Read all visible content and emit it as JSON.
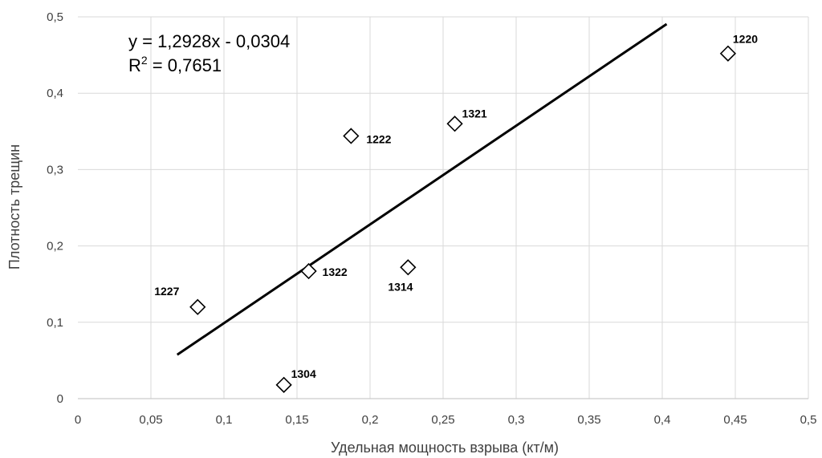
{
  "chart_data": {
    "type": "scatter",
    "xlabel": "Удельная мощность взрыва (кт/м)",
    "ylabel": "Плотность трещин",
    "xlim": [
      0,
      0.5
    ],
    "ylim": [
      0,
      0.5
    ],
    "x_ticks": [
      0,
      0.05,
      0.1,
      0.15,
      0.2,
      0.25,
      0.3,
      0.35,
      0.4,
      0.45,
      0.5
    ],
    "x_tick_labels": [
      "0",
      "0,05",
      "0,1",
      "0,15",
      "0,2",
      "0,25",
      "0,3",
      "0,35",
      "0,4",
      "0,45",
      "0,5"
    ],
    "y_ticks": [
      0,
      0.1,
      0.2,
      0.3,
      0.4,
      0.5
    ],
    "y_tick_labels": [
      "0",
      "0,1",
      "0,2",
      "0,3",
      "0,4",
      "0,5"
    ],
    "grid": true,
    "marker": "diamond",
    "points": [
      {
        "label": "1220",
        "x": 0.445,
        "y": 0.452
      },
      {
        "label": "1321",
        "x": 0.258,
        "y": 0.36
      },
      {
        "label": "1222",
        "x": 0.187,
        "y": 0.344
      },
      {
        "label": "1322",
        "x": 0.158,
        "y": 0.167
      },
      {
        "label": "1314",
        "x": 0.226,
        "y": 0.172
      },
      {
        "label": "1227",
        "x": 0.082,
        "y": 0.12
      },
      {
        "label": "1304",
        "x": 0.141,
        "y": 0.018
      }
    ],
    "trendline": {
      "type": "linear",
      "slope": 1.2928,
      "intercept": -0.0304,
      "x_range": [
        0.068,
        0.403
      ],
      "equation": "y = 1,2928x - 0,0304",
      "r2_prefix": "R",
      "r2_sup": "2",
      "r2_value": " = 0,7651"
    }
  }
}
